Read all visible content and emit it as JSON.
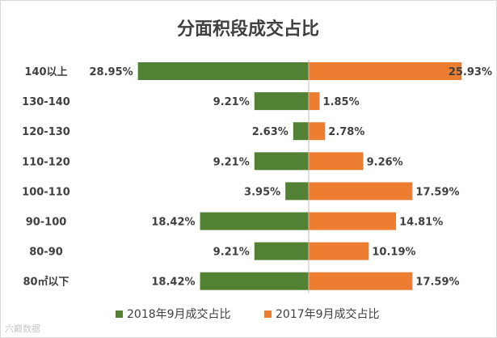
{
  "chart_data": {
    "type": "bar",
    "title": "分面积段成交占比",
    "categories": [
      "140以上",
      "130-140",
      "120-130",
      "110-120",
      "100-110",
      "90-100",
      "80-90",
      "80㎡以下"
    ],
    "series": [
      {
        "name": "2018年9月成交占比",
        "values": [
          28.95,
          9.21,
          2.63,
          9.21,
          3.95,
          18.42,
          9.21,
          18.42
        ],
        "labels": [
          "28.95%",
          "9.21%",
          "2.63%",
          "9.21%",
          "3.95%",
          "18.42%",
          "9.21%",
          "18.42%"
        ],
        "direction": "left",
        "color": "#548235"
      },
      {
        "name": "2017年9月成交占比",
        "values": [
          25.93,
          1.85,
          2.78,
          9.26,
          17.59,
          14.81,
          10.19,
          17.59
        ],
        "labels": [
          "25.93%",
          "1.85%",
          "2.78%",
          "9.26%",
          "17.59%",
          "14.81%",
          "10.19%",
          "17.59%"
        ],
        "direction": "right",
        "color": "#ED7D31"
      }
    ],
    "legend_position": "bottom",
    "grid": false
  },
  "watermark": "六巅数据"
}
